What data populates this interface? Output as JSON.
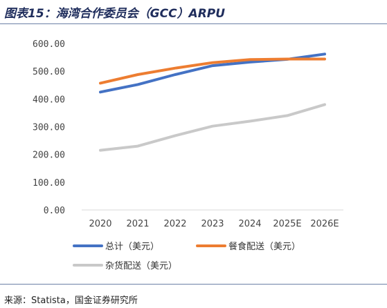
{
  "figure": {
    "title": "图表15：海湾合作委员会（GCC）ARPU",
    "source": "来源：Statista，国金证券研究所"
  },
  "chart_data": {
    "type": "line",
    "title": "",
    "xlabel": "",
    "ylabel": "",
    "categories": [
      "2020",
      "2021",
      "2022",
      "2023",
      "2024",
      "2025E",
      "2026E"
    ],
    "y_ticks": [
      "0.00",
      "100.00",
      "200.00",
      "300.00",
      "400.00",
      "500.00",
      "600.00"
    ],
    "ylim": [
      0,
      600
    ],
    "grid": false,
    "legend_position": "bottom",
    "series": [
      {
        "name": "总计（美元）",
        "color": "#4472c4",
        "values": [
          425,
          452,
          488,
          520,
          533,
          543,
          562
        ]
      },
      {
        "name": "餐食配送（美元）",
        "color": "#ed7d31",
        "values": [
          457,
          488,
          511,
          531,
          542,
          544,
          544
        ]
      },
      {
        "name": "杂货配送（美元）",
        "color": "#c9c9c9",
        "values": [
          215,
          230,
          268,
          302,
          320,
          340,
          380
        ]
      }
    ]
  }
}
